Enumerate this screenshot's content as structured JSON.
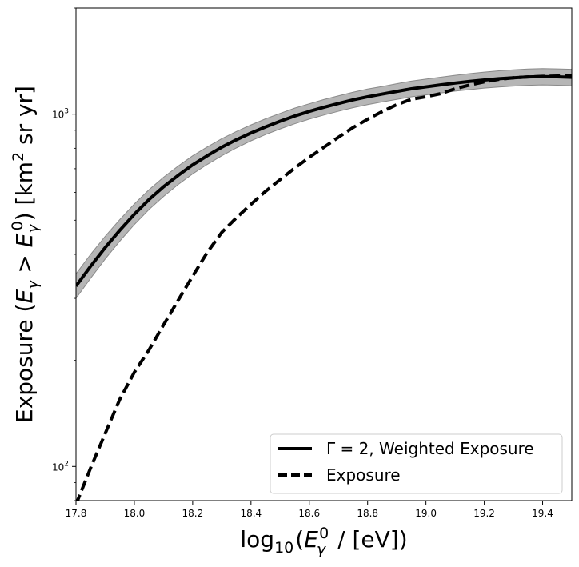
{
  "chart_data": {
    "type": "line",
    "title": "",
    "xlabel": "log10 (Eγ0 / [eV])",
    "ylabel": "Exposure (Eγ > Eγ0) [km2 sr yr]",
    "xlim": [
      17.8,
      19.5
    ],
    "ylim": [
      80,
      2000
    ],
    "yscale": "log",
    "grid": false,
    "legend_position": "bottom-right",
    "x_ticks": [
      17.8,
      18.0,
      18.2,
      18.4,
      18.6,
      18.8,
      19.0,
      19.2,
      19.4
    ],
    "x_tick_labels": [
      "17.8",
      "18.0",
      "18.2",
      "18.4",
      "18.6",
      "18.8",
      "19.0",
      "19.2",
      "19.4"
    ],
    "y_ticks": [
      100,
      1000
    ],
    "y_tick_labels": [
      {
        "base": "10",
        "exp": "2"
      },
      {
        "base": "10",
        "exp": "3"
      }
    ],
    "series": [
      {
        "name": "Γ = 2, Weighted Exposure",
        "style": "solid",
        "color": "#000000",
        "band_color": "#9e9e9e",
        "x": [
          17.8,
          17.85,
          17.9,
          17.95,
          18.0,
          18.05,
          18.1,
          18.15,
          18.2,
          18.25,
          18.3,
          18.35,
          18.4,
          18.45,
          18.5,
          18.55,
          18.6,
          18.65,
          18.7,
          18.75,
          18.8,
          18.85,
          18.9,
          18.95,
          19.0,
          19.05,
          19.1,
          19.15,
          19.2,
          19.25,
          19.3,
          19.35,
          19.4,
          19.45,
          19.5
        ],
        "values": [
          325,
          370,
          418,
          468,
          520,
          572,
          622,
          670,
          718,
          762,
          806,
          846,
          884,
          920,
          955,
          988,
          1018,
          1046,
          1072,
          1098,
          1120,
          1140,
          1160,
          1180,
          1195,
          1210,
          1225,
          1238,
          1250,
          1260,
          1268,
          1275,
          1278,
          1276,
          1272
        ],
        "band_lower": [
          300,
          342,
          388,
          436,
          486,
          536,
          584,
          631,
          677,
          720,
          762,
          802,
          840,
          875,
          908,
          939,
          968,
          994,
          1019,
          1043,
          1064,
          1083,
          1101,
          1120,
          1134,
          1148,
          1162,
          1174,
          1185,
          1194,
          1201,
          1207,
          1210,
          1208,
          1204
        ],
        "band_upper": [
          352,
          400,
          450,
          502,
          556,
          610,
          662,
          712,
          762,
          807,
          852,
          893,
          932,
          970,
          1005,
          1040,
          1070,
          1100,
          1127,
          1154,
          1178,
          1198,
          1220,
          1241,
          1257,
          1273,
          1289,
          1303,
          1316,
          1327,
          1336,
          1343,
          1346,
          1344,
          1340
        ]
      },
      {
        "name": "Exposure",
        "style": "dashed",
        "color": "#000000",
        "x": [
          17.8,
          17.85,
          17.9,
          17.95,
          18.0,
          18.05,
          18.1,
          18.15,
          18.2,
          18.25,
          18.3,
          18.35,
          18.4,
          18.45,
          18.5,
          18.55,
          18.6,
          18.65,
          18.7,
          18.75,
          18.8,
          18.85,
          18.9,
          18.95,
          19.0,
          19.05,
          19.1,
          19.15,
          19.2,
          19.25,
          19.3,
          19.35,
          19.4,
          19.45,
          19.5
        ],
        "values": [
          78,
          99,
          124,
          155,
          185,
          214,
          252,
          296,
          347,
          405,
          462,
          508,
          555,
          604,
          652,
          703,
          754,
          805,
          860,
          916,
          967,
          1017,
          1064,
          1102,
          1120,
          1143,
          1180,
          1210,
          1235,
          1255,
          1268,
          1275,
          1280,
          1283,
          1285
        ]
      }
    ]
  }
}
